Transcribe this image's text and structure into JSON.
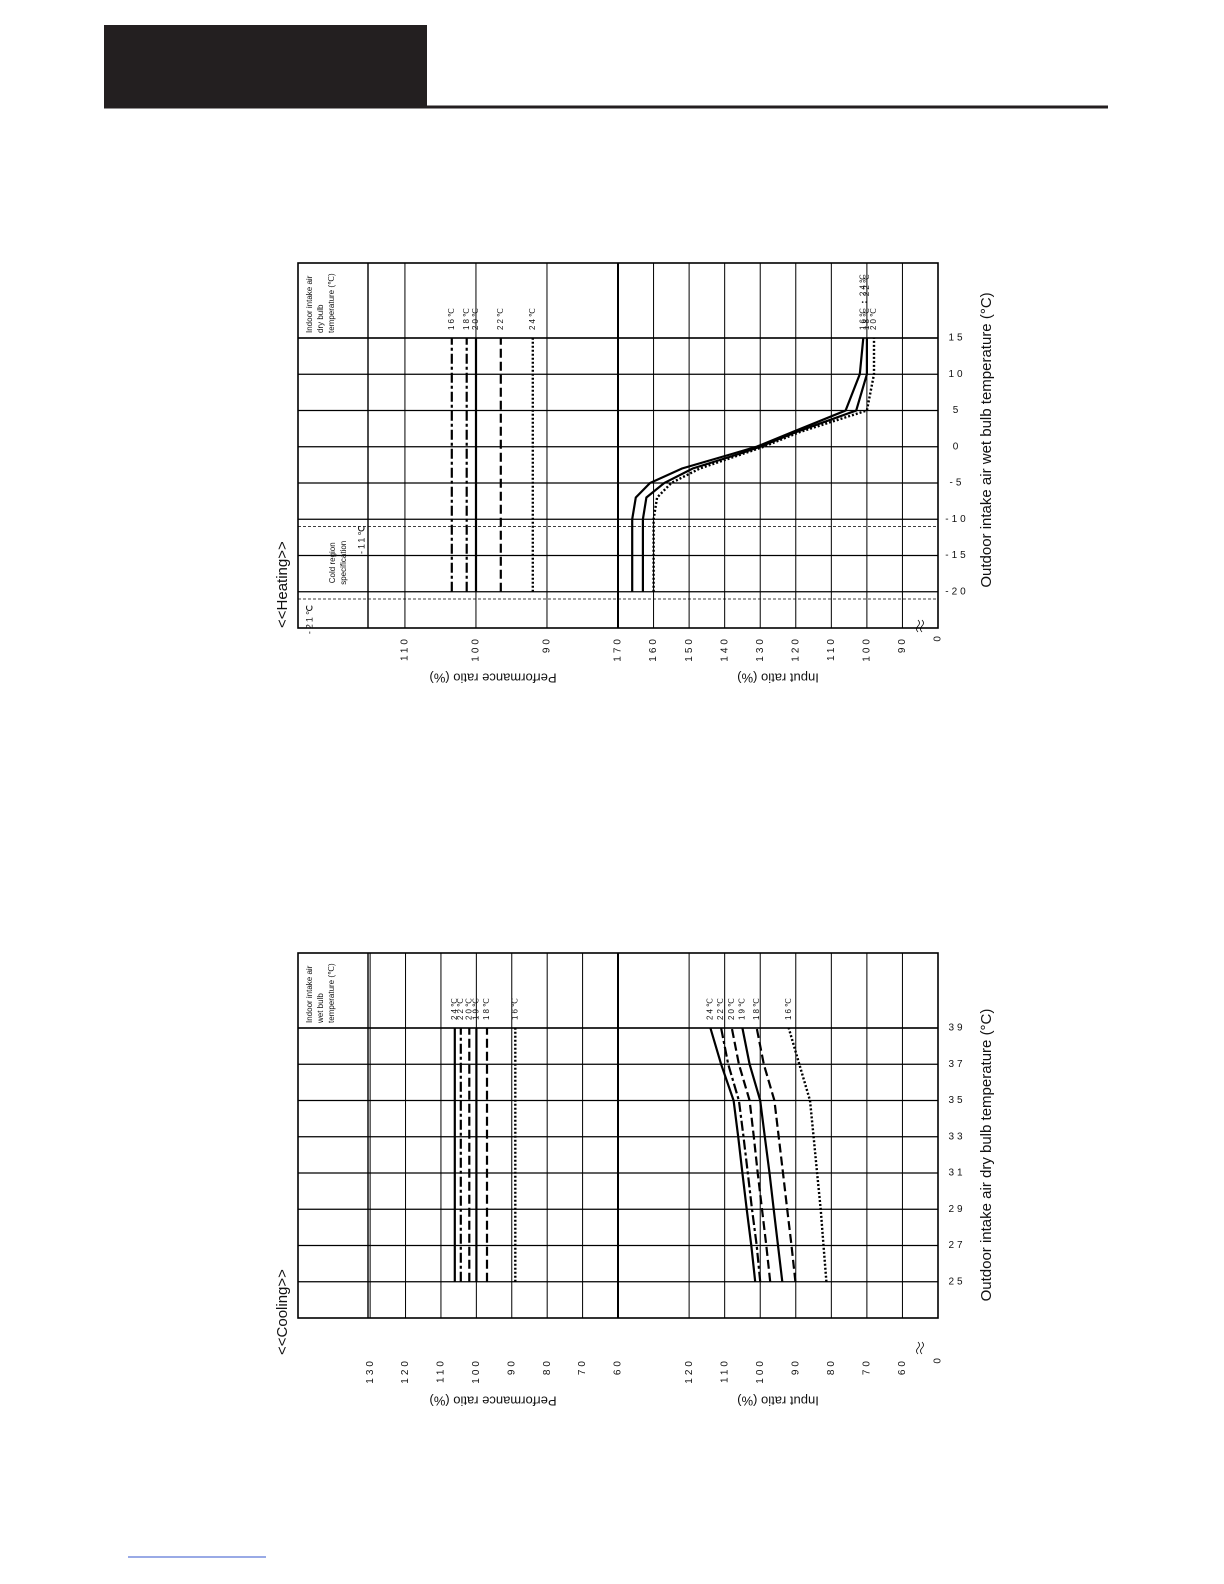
{
  "chart_data": [
    {
      "type": "line",
      "title": "<<Heating>>",
      "legend_title": [
        "Indoor intake air",
        "dry bulb",
        "temperature (℃)"
      ],
      "xlabel": "Outdoor intake air wet bulb temperature (°C)",
      "xlim": [
        -25,
        15
      ],
      "xticks": [
        -20,
        -15,
        -10,
        -5,
        0,
        5,
        10,
        15
      ],
      "grid": true,
      "annotations": {
        "lines": [
          -21,
          -11
        ],
        "labels": [
          "-21℃",
          "-11℃"
        ],
        "note": [
          "Cold region",
          "specification"
        ]
      },
      "panels": [
        {
          "ylabel": "Performance ratio (%)",
          "ylim": [
            80,
            115.2
          ],
          "yticks": [
            90,
            100,
            110
          ],
          "x": [
            -20,
            -15,
            -10,
            -5,
            0,
            5,
            10,
            15
          ],
          "series": [
            {
              "name": "16℃",
              "color": "#000000",
              "dash": "dash-dot",
              "values": [
                103.4,
                103.4,
                103.4,
                103.4,
                103.4,
                103.4,
                103.4,
                103.4
              ]
            },
            {
              "name": "18℃",
              "color": "#000000",
              "dash": "dash-dot",
              "values": [
                101.3,
                101.3,
                101.3,
                101.3,
                101.3,
                101.3,
                101.3,
                101.3
              ]
            },
            {
              "name": "20℃",
              "color": "#000000",
              "dash": "solid",
              "values": [
                100,
                100,
                100,
                100,
                100,
                100,
                100,
                100
              ]
            },
            {
              "name": "22℃",
              "color": "#000000",
              "dash": "dashed",
              "values": [
                96.5,
                96.5,
                96.5,
                96.5,
                96.5,
                96.5,
                96.5,
                96.5
              ]
            },
            {
              "name": "24℃",
              "color": "#000000",
              "dash": "dotted",
              "values": [
                92,
                92,
                92,
                92,
                92,
                92,
                92,
                92
              ]
            }
          ]
        },
        {
          "ylabel": "Input ratio (%)",
          "ylim": [
            80,
            170
          ],
          "yticks": [
            90,
            100,
            110,
            120,
            130,
            140,
            150,
            160,
            170
          ],
          "break_label": "0",
          "x": [
            -20,
            -15,
            -10,
            -7,
            -5,
            -3,
            -1,
            0,
            2,
            5,
            10,
            15
          ],
          "series": [
            {
              "name": "16℃・24℃",
              "color": "#000000",
              "dash": "solid",
              "values": [
                166,
                166,
                166,
                165,
                161,
                152,
                138,
                131,
                121,
                106,
                102,
                101
              ]
            },
            {
              "name": "18℃・22℃",
              "color": "#000000",
              "dash": "solid",
              "values": [
                163,
                163,
                163,
                162,
                157,
                149,
                136,
                130,
                120,
                103,
                100,
                100
              ]
            },
            {
              "name": "20℃",
              "color": "#000000",
              "dash": "dotted",
              "values": [
                160,
                160,
                160,
                159,
                155,
                147,
                135,
                129,
                119,
                100,
                98,
                98
              ]
            }
          ]
        }
      ]
    },
    {
      "type": "line",
      "title": "<<Cooling>>",
      "legend_title": [
        "Indoor intake air",
        "wet bulb",
        "temperature (℃)"
      ],
      "xlabel": "Outdoor intake air dry bulb temperature (°C)",
      "xlim": [
        23,
        39
      ],
      "xticks": [
        25,
        27,
        29,
        31,
        33,
        35,
        37,
        39
      ],
      "grid": true,
      "panels": [
        {
          "ylabel": "Performance ratio (%)",
          "ylim": [
            60,
            130.6
          ],
          "yticks": [
            60,
            70,
            80,
            90,
            100,
            110,
            120,
            130
          ],
          "x": [
            25,
            27,
            29,
            31,
            33,
            35,
            37,
            39
          ],
          "series": [
            {
              "name": "24℃",
              "color": "#000000",
              "dash": "solid",
              "values": [
                106.1,
                106.1,
                106.1,
                106.1,
                106.1,
                106.1,
                106.1,
                106.1
              ]
            },
            {
              "name": "22℃",
              "color": "#000000",
              "dash": "dash-dot",
              "values": [
                104.4,
                104.4,
                104.4,
                104.4,
                104.4,
                104.4,
                104.4,
                104.4
              ]
            },
            {
              "name": "20℃",
              "color": "#000000",
              "dash": "dashed",
              "values": [
                102,
                102,
                102,
                102,
                102,
                102,
                102,
                102
              ]
            },
            {
              "name": "19℃",
              "color": "#000000",
              "dash": "solid",
              "values": [
                100,
                100,
                100,
                100,
                100,
                100,
                100,
                100
              ]
            },
            {
              "name": "18℃",
              "color": "#000000",
              "dash": "dashed",
              "values": [
                97,
                97,
                97,
                97,
                97,
                97,
                97,
                97
              ]
            },
            {
              "name": "16℃",
              "color": "#000000",
              "dash": "dotted",
              "values": [
                89,
                89,
                89,
                89,
                89,
                89,
                89,
                89
              ]
            }
          ]
        },
        {
          "ylabel": "Input ratio (%)",
          "ylim": [
            50,
            140
          ],
          "yticks": [
            60,
            70,
            80,
            90,
            100,
            110,
            120
          ],
          "break_label": "0",
          "x": [
            25,
            27,
            29,
            31,
            33,
            35,
            37,
            39
          ],
          "series": [
            {
              "name": "24℃",
              "color": "#000000",
              "dash": "solid",
              "values": [
                101.4,
                102.5,
                103.8,
                105,
                106.2,
                107.5,
                111,
                114
              ]
            },
            {
              "name": "22℃",
              "color": "#000000",
              "dash": "dash-dot",
              "values": [
                100,
                101,
                102.3,
                103.5,
                104.7,
                106,
                109,
                111
              ]
            },
            {
              "name": "20℃",
              "color": "#000000",
              "dash": "dashed",
              "values": [
                97.2,
                98.3,
                99.5,
                100.7,
                101.8,
                103,
                106,
                108
              ]
            },
            {
              "name": "19℃",
              "color": "#000000",
              "dash": "solid",
              "values": [
                93.8,
                95,
                96.2,
                97.4,
                98.7,
                100,
                103,
                105
              ]
            },
            {
              "name": "18℃",
              "color": "#000000",
              "dash": "dashed",
              "values": [
                90.1,
                91.2,
                92.4,
                93.6,
                94.8,
                96,
                99,
                101
              ]
            },
            {
              "name": "16℃",
              "color": "#000000",
              "dash": "dotted",
              "values": [
                81.4,
                82.2,
                83,
                84,
                85,
                86,
                89,
                92
              ]
            }
          ]
        }
      ]
    }
  ]
}
